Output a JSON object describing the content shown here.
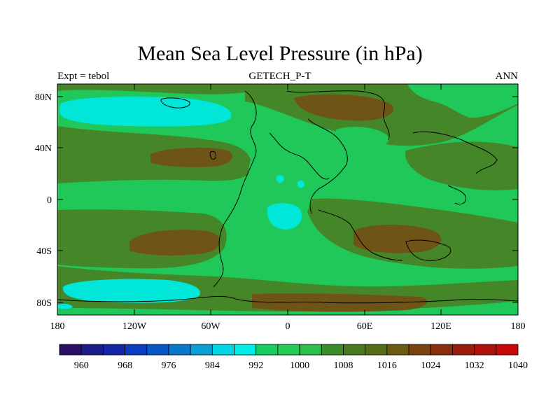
{
  "title": "Mean Sea Level Pressure (in hPa)",
  "subtitle_left": "Expt = tebol",
  "subtitle_center": "GETECH_P-T",
  "subtitle_right": "ANN",
  "lat_labels": [
    "80N",
    "40N",
    "0",
    "40S",
    "80S"
  ],
  "lon_labels": [
    "180",
    "120W",
    "60W",
    "0",
    "60E",
    "120E",
    "180"
  ],
  "colorbar": {
    "labels": [
      "960",
      "968",
      "976",
      "984",
      "992",
      "1000",
      "1008",
      "1016",
      "1024",
      "1032",
      "1040"
    ],
    "colors": [
      "#2a0f66",
      "#1b1b8a",
      "#1527a6",
      "#0c3cc0",
      "#0a57c8",
      "#0a78c8",
      "#0aa0d6",
      "#00d6e6",
      "#00f0e6",
      "#18cc60",
      "#22cc55",
      "#2bbf4c",
      "#3b8c2b",
      "#4a7a20",
      "#566d1a",
      "#6b5a14",
      "#7a4512",
      "#8a2e10",
      "#9a1c0e",
      "#b0100c",
      "#c8080a"
    ]
  },
  "map_colors": {
    "low": "#00e6d8",
    "base": "#1fc858",
    "mid": "#458628",
    "high": "#6e5417",
    "higher": "#8a3a14",
    "coast": "#000000"
  }
}
